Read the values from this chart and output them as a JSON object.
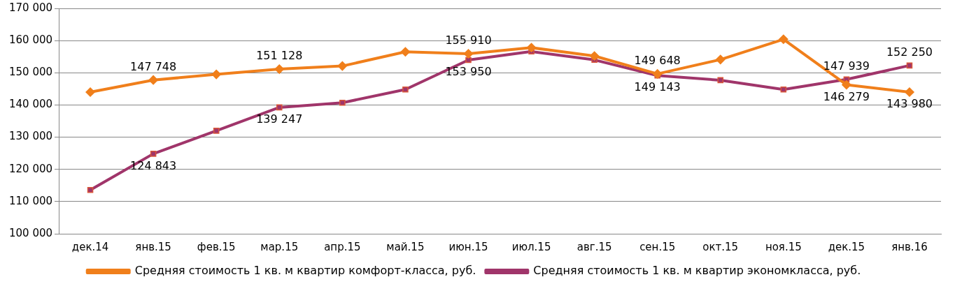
{
  "chart_data": {
    "type": "line",
    "categories": [
      "дек.14",
      "янв.15",
      "фев.15",
      "мар.15",
      "апр.15",
      "май.15",
      "июн.15",
      "июл.15",
      "авг.15",
      "сен.15",
      "окт.15",
      "ноя.15",
      "дек.15",
      "янв.16"
    ],
    "series": [
      {
        "name": "Средняя стоимость 1 кв. м квартир комфорт-класса, руб.",
        "color": "#f07f1b",
        "marker": "diamond",
        "values": [
          144000,
          147748,
          149500,
          151128,
          152100,
          156500,
          155910,
          157800,
          155200,
          149648,
          154100,
          160400,
          146279,
          143980
        ],
        "value_labels": [
          null,
          "147 748",
          null,
          "151 128",
          null,
          null,
          "155 910",
          null,
          null,
          "149 648",
          null,
          null,
          "146 279",
          "143 980"
        ]
      },
      {
        "name": "Средняя стоимость 1 кв. м квартир экономкласса, руб.",
        "color": "#a0356a",
        "marker": "square",
        "values": [
          113600,
          124843,
          132000,
          139247,
          140700,
          144800,
          153950,
          156600,
          154000,
          149143,
          147700,
          144800,
          147939,
          152250
        ],
        "value_labels": [
          null,
          "124 843",
          null,
          "139 247",
          null,
          null,
          "153 950",
          null,
          null,
          "149 143",
          null,
          null,
          "147 939",
          "152 250"
        ]
      }
    ],
    "ylim": [
      100000,
      170000
    ],
    "yticks": [
      {
        "value": 100000,
        "label": "100 000"
      },
      {
        "value": 110000,
        "label": "110 000"
      },
      {
        "value": 120000,
        "label": "120 000"
      },
      {
        "value": 130000,
        "label": "130 000"
      },
      {
        "value": 140000,
        "label": "140 000"
      },
      {
        "value": 150000,
        "label": "150 000"
      },
      {
        "value": 160000,
        "label": "160 000"
      },
      {
        "value": 170000,
        "label": "170 000"
      }
    ],
    "grid": "y",
    "legend": "bottom",
    "line_style": "solid"
  }
}
